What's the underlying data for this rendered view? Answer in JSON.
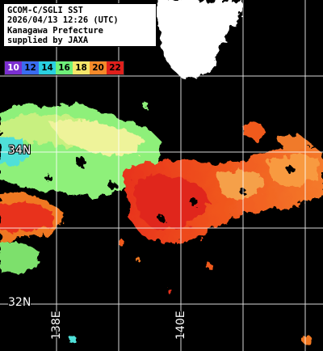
{
  "info": {
    "line1": "GCOM-C/SGLI SST",
    "line2": "2026/04/13 12:26 (UTC)",
    "line3": "Kanagawa Prefecture",
    "line4": "supplied by JAXA"
  },
  "legend": {
    "labels": [
      "10",
      "12",
      "14",
      "16",
      "18",
      "20",
      "22"
    ],
    "colors": [
      "#7b2fd0",
      "#3a6cf0",
      "#2ad0e0",
      "#6ff07a",
      "#f5e66a",
      "#f58a2a",
      "#e0201c"
    ]
  },
  "grid": {
    "lat_labels": [
      {
        "text": "34N",
        "lat": 34
      },
      {
        "text": "32N",
        "lat": 32
      }
    ],
    "lon_labels": [
      {
        "text": "138E",
        "lon": 138
      },
      {
        "text": "140E",
        "lon": 140
      }
    ]
  },
  "colors": {
    "land": "#ffffff",
    "cloud": "#000000",
    "grid_line": "#ffffff"
  }
}
